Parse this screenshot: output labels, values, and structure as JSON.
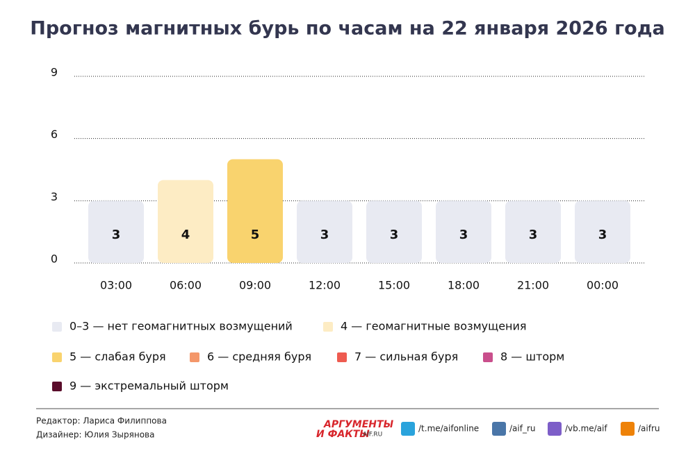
{
  "chart_data": {
    "type": "bar",
    "title": "Прогноз магнитных бурь по часам на 22 января 2026 года",
    "categories": [
      "03:00",
      "06:00",
      "09:00",
      "12:00",
      "15:00",
      "18:00",
      "21:00",
      "00:00"
    ],
    "values": [
      3,
      4,
      5,
      3,
      3,
      3,
      3,
      3
    ],
    "colors": [
      "#e8eaf2",
      "#fdecc4",
      "#f9d36e",
      "#e8eaf2",
      "#e8eaf2",
      "#e8eaf2",
      "#e8eaf2",
      "#e8eaf2"
    ],
    "ylim": [
      0,
      9
    ],
    "yticks": [
      0,
      3,
      6,
      9
    ],
    "grid": true,
    "legend": [
      {
        "label": "0–3 — нет геомагнитных возмущений",
        "color": "#e8eaf2"
      },
      {
        "label": "4 — геомагнитные возмущения",
        "color": "#fdecc4"
      },
      {
        "label": "5 — слабая буря",
        "color": "#f9d36e"
      },
      {
        "label": "6 — средняя буря",
        "color": "#f4976a"
      },
      {
        "label": "7 — сильная буря",
        "color": "#ee5b50"
      },
      {
        "label": "8 — шторм",
        "color": "#c94f8c"
      },
      {
        "label": "9 — экстремальный шторм",
        "color": "#5a0d2b"
      }
    ]
  },
  "footer": {
    "editor": "Редактор: Лариса Филиппова",
    "designer": "Дизайнер: Юлия Зырянова",
    "logo": [
      "АРГУМЕНТЫ",
      "И ФАКТЫ",
      "AIF.RU"
    ],
    "links": [
      "/t.me/aifonline",
      "/aif_ru",
      "/vb.me/aif",
      "/aifru"
    ]
  }
}
